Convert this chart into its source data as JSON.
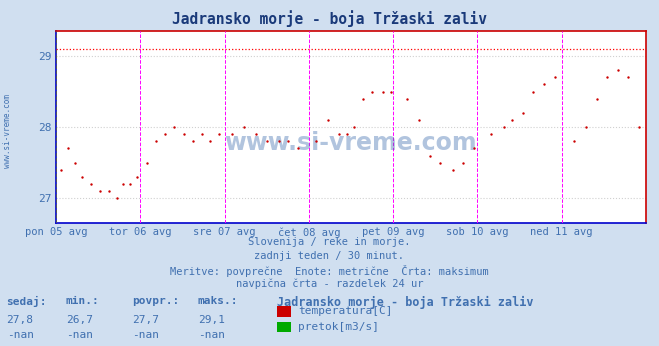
{
  "title": "Jadransko morje - boja Tržaski zaliv",
  "title_color": "#1a3a7a",
  "bg_color": "#d0dff0",
  "plot_bg_color": "#ffffff",
  "grid_color": "#d0d0d0",
  "xlabel_color": "#4070b0",
  "text_color": "#4070b0",
  "ylabel_ticks": [
    27,
    28,
    29
  ],
  "ymin": 26.65,
  "ymax": 29.35,
  "xmin": 0,
  "xmax": 336,
  "xticklabels": [
    "pon 05 avg",
    "tor 06 avg",
    "sre 07 avg",
    "čet 08 avg",
    "pet 09 avg",
    "sob 10 avg",
    "ned 11 avg"
  ],
  "xtick_positions": [
    0,
    48,
    96,
    144,
    192,
    240,
    288
  ],
  "vline_positions": [
    48,
    96,
    144,
    192,
    240,
    288
  ],
  "hline_dotted_y": 29.1,
  "subtitle_lines": [
    "Slovenija / reke in morje.",
    "zadnji teden / 30 minut.",
    "Meritve: povprečne  Enote: metrične  Črta: maksimum",
    "navpična črta - razdelek 24 ur"
  ],
  "table_header": [
    "sedaj:",
    "min.:",
    "povpr.:",
    "maks.:",
    "Jadransko morje - boja Tržaski zaliv"
  ],
  "table_row1": [
    "27,8",
    "26,7",
    "27,7",
    "29,1"
  ],
  "table_row2": [
    "-nan",
    "-nan",
    "-nan",
    "-nan"
  ],
  "legend_items": [
    {
      "label": "temperatura[C]",
      "color": "#cc0000"
    },
    {
      "label": "pretok[m3/s]",
      "color": "#00aa00"
    }
  ],
  "watermark": "www.si-vreme.com",
  "watermark_color": "#3366aa",
  "left_spine_color": "#0000cc",
  "bottom_spine_color": "#0000cc",
  "right_spine_color": "#cc0000",
  "top_spine_color": "#cc0000",
  "temp_pts_x": [
    3,
    7,
    11,
    15,
    20,
    25,
    30,
    35,
    38,
    42,
    46,
    52,
    57,
    62,
    67,
    73,
    78,
    83,
    88,
    93,
    100,
    107,
    114,
    120,
    127,
    132,
    138,
    148,
    155,
    161,
    166,
    170,
    175,
    180,
    186,
    191,
    200,
    207,
    213,
    219,
    226,
    232,
    238,
    248,
    255,
    260,
    266,
    272,
    278,
    284,
    295,
    302,
    308,
    314,
    320,
    326,
    332
  ],
  "temp_pts_y": [
    27.4,
    27.7,
    27.5,
    27.3,
    27.2,
    27.1,
    27.1,
    27.0,
    27.2,
    27.2,
    27.3,
    27.5,
    27.8,
    27.9,
    28.0,
    27.9,
    27.8,
    27.9,
    27.8,
    27.9,
    27.9,
    28.0,
    27.9,
    27.8,
    27.8,
    27.8,
    27.7,
    27.8,
    28.1,
    27.9,
    27.9,
    28.0,
    28.4,
    28.5,
    28.5,
    28.5,
    28.4,
    28.1,
    27.6,
    27.5,
    27.4,
    27.5,
    27.7,
    27.9,
    28.0,
    28.1,
    28.2,
    28.5,
    28.6,
    28.7,
    27.8,
    28.0,
    28.4,
    28.7,
    28.8,
    28.7,
    28.0
  ]
}
